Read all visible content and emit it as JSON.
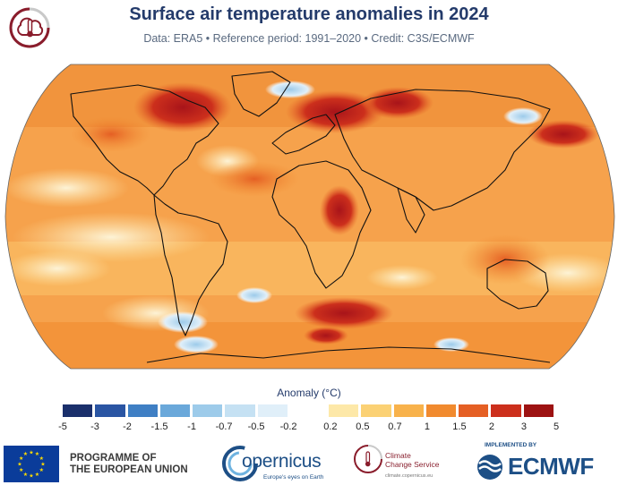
{
  "header": {
    "title": "Surface air temperature anomalies in 2024",
    "subtitle": "Data: ERA5 • Reference period: 1991–2020 • Credit: C3S/ECMWF"
  },
  "legend": {
    "title": "Anomaly (°C)",
    "ticks": [
      "-5",
      "-3",
      "-2",
      "-1.5",
      "-1",
      "-0.7",
      "-0.5",
      "-0.2",
      "0.2",
      "0.5",
      "0.7",
      "1",
      "1.5",
      "2",
      "3",
      "5"
    ],
    "cold_colors": [
      "#1a2f6b",
      "#2a55a3",
      "#3f7fc4",
      "#6aa8da",
      "#9dcbea",
      "#c5e1f3",
      "#e0eff9"
    ],
    "warm_colors": [
      "#fde8a8",
      "#fbd174",
      "#f8b24b",
      "#f18a2e",
      "#e55f24",
      "#cc2f1c",
      "#9d1212"
    ]
  },
  "footer": {
    "eu_line1": "PROGRAMME OF",
    "eu_line2": "THE EUROPEAN UNION",
    "copernicus_name": "opernicus",
    "copernicus_tagline": "Europe's eyes on Earth",
    "c3s_line1": "Climate",
    "c3s_line2": "Change Service",
    "c3s_url": "climate.copernicus.eu",
    "ecmwf_implemented": "IMPLEMENTED BY",
    "ecmwf_name": "ECMWF"
  },
  "colors": {
    "title_navy": "#243b6b",
    "ocean_base": "#f6a24c",
    "coast": "#111111"
  }
}
